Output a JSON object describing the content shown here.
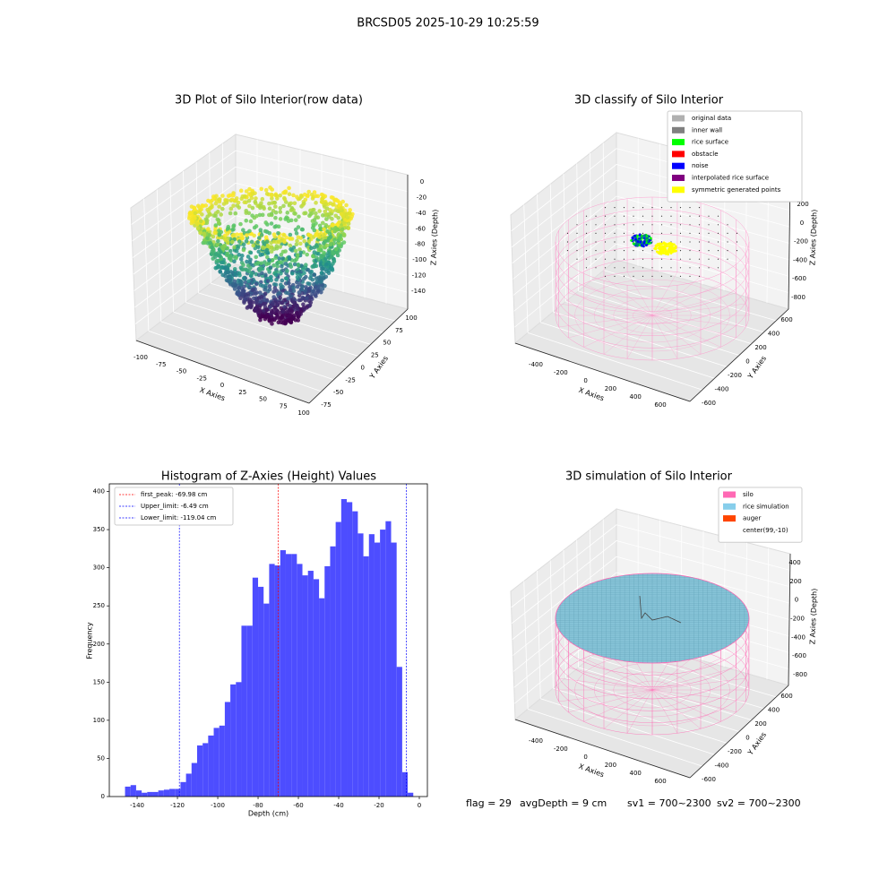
{
  "title": "BRCSD05 2025-10-29 10:25:59",
  "chart_data": [
    {
      "type": "scatter3d",
      "title": "3D Plot of Silo Interior(row data)",
      "xlabel": "X Axies",
      "ylabel": "Y Axies",
      "zlabel": "Z Axies (Depth)",
      "xticks": [
        -100,
        -75,
        -50,
        -25,
        0,
        25,
        50,
        75,
        100
      ],
      "yticks": [
        -75,
        -50,
        -25,
        0,
        25,
        50,
        75,
        100
      ],
      "zticks": [
        0,
        -20,
        -40,
        -60,
        -80,
        -100,
        -120,
        -140
      ]
    },
    {
      "type": "classify3d",
      "title": "3D classify of Silo Interior",
      "xlabel": "X Axies",
      "ylabel": "Y Axies",
      "zlabel": "Z Axies (Depth)",
      "xticks": [
        -400,
        -200,
        0,
        200,
        400,
        600
      ],
      "yticks": [
        -600,
        -400,
        -200,
        0,
        200,
        400,
        600
      ],
      "zticks": [
        200,
        0,
        -200,
        -400,
        -600,
        -800
      ],
      "legend": [
        {
          "name": "original data",
          "color": "#b0b0b0"
        },
        {
          "name": "inner wall",
          "color": "#808080"
        },
        {
          "name": "rice surface",
          "color": "#00ff00"
        },
        {
          "name": "obstacle",
          "color": "#ff0000"
        },
        {
          "name": "noise",
          "color": "#0000ff"
        },
        {
          "name": "interpolated rice surface",
          "color": "#800080"
        },
        {
          "name": "symmetric generated points",
          "color": "#ffff00"
        }
      ]
    },
    {
      "type": "histogram",
      "title": "Histogram of Z-Axies (Height) Values",
      "xlabel": "Depth (cm)",
      "ylabel": "Frequency",
      "color": "#4d4dff",
      "bins": [
        -146,
        -143.25,
        -140.5,
        -137.75,
        -135,
        -132.25,
        -129.5,
        -126.75,
        -124,
        -121.25,
        -118.5,
        -115.75,
        -113,
        -110.25,
        -107.5,
        -104.75,
        -102,
        -99.25,
        -96.5,
        -93.75,
        -91,
        -88.25,
        -85.5,
        -82.75,
        -80,
        -77.25,
        -74.5,
        -71.75,
        -69,
        -66.25,
        -63.5,
        -60.75,
        -58,
        -55.25,
        -52.5,
        -49.75,
        -47,
        -44.25,
        -41.5,
        -38.75,
        -36,
        -33.25,
        -30.5,
        -27.75,
        -25,
        -22.25,
        -19.5,
        -16.75,
        -14,
        -11.25,
        -8.5,
        -5.75,
        -3
      ],
      "counts": [
        13,
        15,
        8,
        5,
        6,
        6,
        8,
        9,
        10,
        10,
        19,
        30,
        44,
        67,
        70,
        80,
        90,
        93,
        124,
        147,
        150,
        224,
        224,
        287,
        275,
        253,
        305,
        303,
        323,
        318,
        318,
        305,
        290,
        296,
        285,
        260,
        302,
        328,
        360,
        390,
        386,
        374,
        345,
        315,
        344,
        333,
        350,
        361,
        333,
        170,
        32,
        5
      ],
      "xlim": [
        -153.8,
        4
      ],
      "ylim": [
        0,
        410
      ],
      "xticks": [
        -140,
        -120,
        -100,
        -80,
        -60,
        -40,
        -20,
        0
      ],
      "yticks": [
        0,
        50,
        100,
        150,
        200,
        250,
        300,
        350,
        400
      ],
      "lines": [
        {
          "label": "first_peak: -69.98 cm",
          "value": -69.98,
          "color": "#ff0000"
        },
        {
          "label": "Upper_limit: -6.49 cm",
          "value": -6.49,
          "color": "#0000ff"
        },
        {
          "label": "Lower_limit: -119.04 cm",
          "value": -119.04,
          "color": "#0000ff"
        }
      ]
    },
    {
      "type": "simulation3d",
      "title": "3D simulation of Silo Interior",
      "xlabel": "X Axies",
      "ylabel": "Y Axies",
      "zlabel": "Z Axies (Depth)",
      "xticks": [
        -400,
        -200,
        0,
        200,
        400,
        600
      ],
      "yticks": [
        -600,
        -400,
        -200,
        0,
        200,
        400,
        600
      ],
      "zticks": [
        400,
        200,
        0,
        -200,
        -400,
        -600,
        -800
      ],
      "legend": [
        {
          "name": "silo",
          "color": "#ff69b4"
        },
        {
          "name": "rice simulation",
          "color": "#87ceeb"
        },
        {
          "name": "auger",
          "color": "#ff4500"
        },
        {
          "name": "center(99,-10)",
          "color": "#ffffff"
        }
      ]
    }
  ],
  "footer": [
    "flag = 29",
    "avgDepth = 9 cm",
    "sv1 = 700~2300",
    "sv2 = 700~2300"
  ]
}
